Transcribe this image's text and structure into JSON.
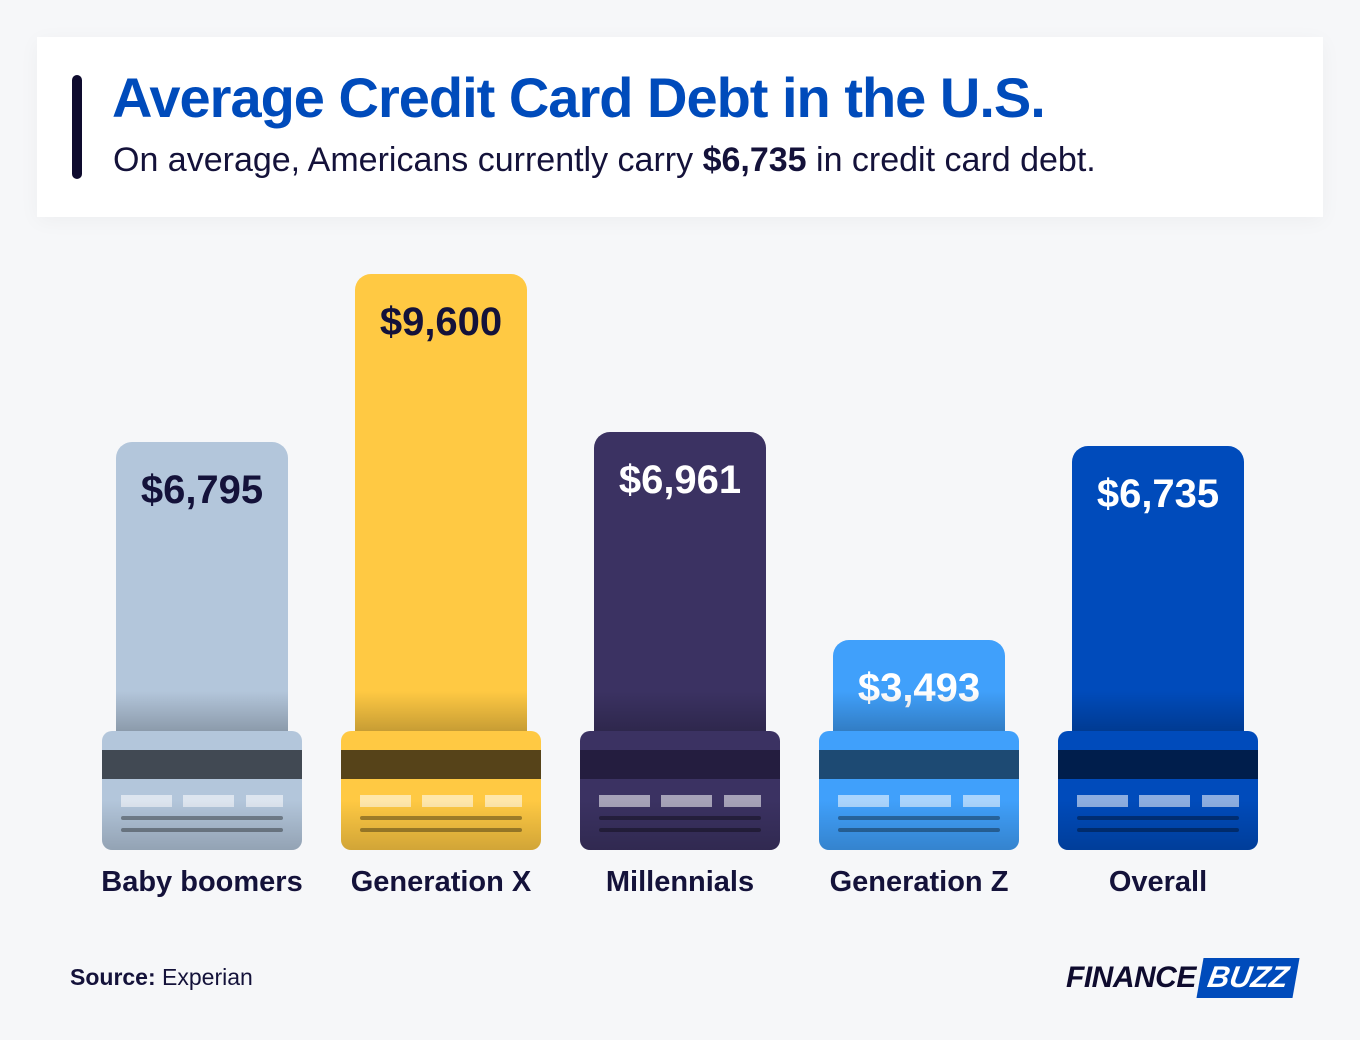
{
  "header": {
    "title": "Average Credit Card Debt in the U.S.",
    "subtitle_pre": "On average, Americans currently carry ",
    "subtitle_bold": "$6,735",
    "subtitle_post": " in credit card debt."
  },
  "chart_data": {
    "type": "bar",
    "title": "Average Credit Card Debt in the U.S.",
    "categories": [
      "Baby boomers",
      "Generation X",
      "Millennials",
      "Generation Z",
      "Overall"
    ],
    "values": [
      6795,
      9600,
      6961,
      3493,
      6735
    ],
    "labels": [
      "$6,795",
      "$9,600",
      "$6,961",
      "$3,493",
      "$6,735"
    ],
    "colors": [
      "#b3c6db",
      "#ffc943",
      "#3b3262",
      "#40a0fb",
      "#004bbb"
    ],
    "stripe_colors": [
      "#414953",
      "#564319",
      "#241d3f",
      "#1d4a73",
      "#001e4c"
    ],
    "label_colors": [
      "#14123a",
      "#14123a",
      "#ffffff",
      "#ffffff",
      "#ffffff"
    ],
    "ylim": [
      0,
      10000
    ],
    "grid": false
  },
  "footer": {
    "source_label": "Source:",
    "source_value": " Experian",
    "logo_a": "FINANCE",
    "logo_b": "BUZZ"
  }
}
